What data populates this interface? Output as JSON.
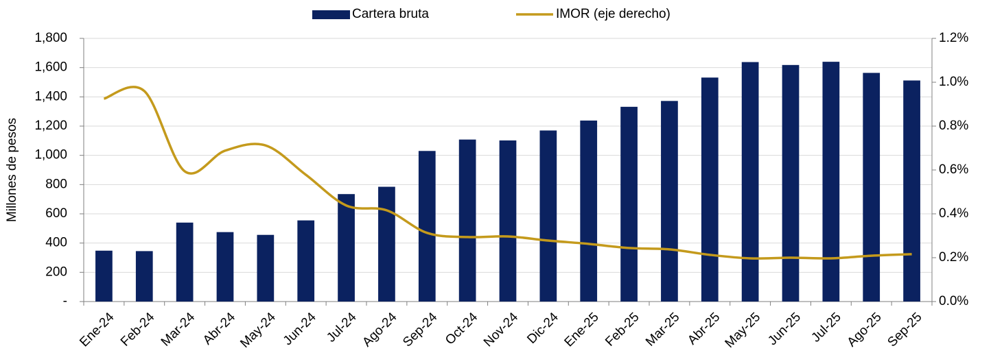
{
  "chart_data": {
    "type": "bar-line",
    "y_axis_label": "Millones de pesos",
    "categories": [
      "Ene-24",
      "Feb-24",
      "Mar-24",
      "Abr-24",
      "May-24",
      "Jun-24",
      "Jul-24",
      "Ago-24",
      "Sep-24",
      "Oct-24",
      "Nov-24",
      "Dic-24",
      "Ene-25",
      "Feb-25",
      "Mar-25",
      "Abr-25",
      "May-25",
      "Jun-25",
      "Jul-25",
      "Ago-25",
      "Sep-25"
    ],
    "series": [
      {
        "name": "Cartera bruta",
        "type": "bar",
        "color": "#0b2260",
        "values": [
          348,
          345,
          540,
          475,
          456,
          555,
          735,
          785,
          1030,
          1108,
          1102,
          1170,
          1238,
          1332,
          1372,
          1532,
          1638,
          1618,
          1640,
          1564,
          1512
        ]
      },
      {
        "name": "IMOR (eje derecho)",
        "type": "line",
        "axis": "y2",
        "color": "#c49a1c",
        "values": [
          0.925,
          0.96,
          0.594,
          0.688,
          0.712,
          0.578,
          0.438,
          0.416,
          0.313,
          0.294,
          0.297,
          0.278,
          0.263,
          0.244,
          0.238,
          0.213,
          0.197,
          0.2,
          0.197,
          0.209,
          0.216
        ]
      }
    ],
    "ylim": [
      0,
      1800
    ],
    "yticks": [
      {
        "value": 0,
        "label": "-"
      },
      200,
      400,
      600,
      800,
      {
        "value": 1000,
        "label": "1,000"
      },
      {
        "value": 1200,
        "label": "1,200"
      },
      {
        "value": 1400,
        "label": "1,400"
      },
      {
        "value": 1600,
        "label": "1,600"
      },
      {
        "value": 1800,
        "label": "1,800"
      }
    ],
    "y2lim": [
      0,
      1.2
    ],
    "y2ticks": [
      {
        "value": 0,
        "label": "0.0%"
      },
      {
        "value": 0.2,
        "label": "0.2%"
      },
      {
        "value": 0.4,
        "label": "0.4%"
      },
      {
        "value": 0.6,
        "label": "0.6%"
      },
      {
        "value": 0.8,
        "label": "0.8%"
      },
      {
        "value": 1.0,
        "label": "1.0%"
      },
      {
        "value": 1.2,
        "label": "1.2%"
      }
    ],
    "grid": true,
    "legend": "top"
  }
}
